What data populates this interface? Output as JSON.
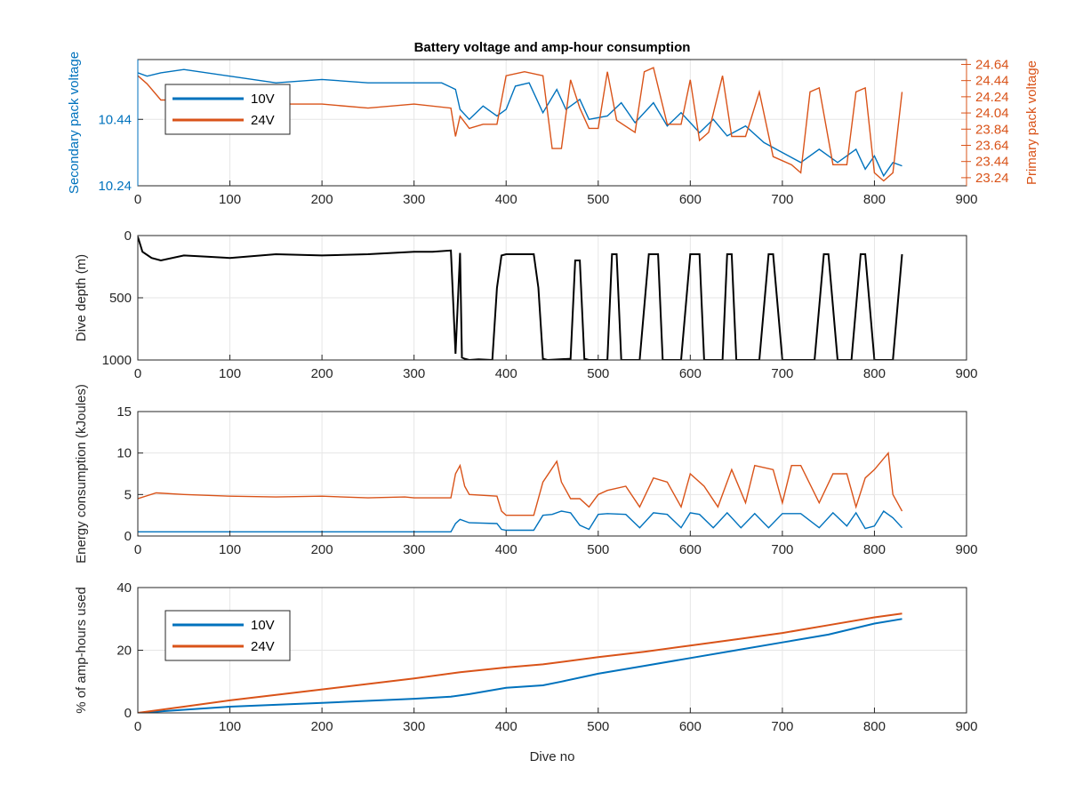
{
  "figure": {
    "title": "Battery voltage and amp-hour consumption",
    "colors": {
      "blue": "#0072bd",
      "orange": "#d95319",
      "black": "#000000",
      "grid": "#e6e6e6",
      "axis": "#262626"
    }
  },
  "chart_data": [
    {
      "id": "voltage",
      "type": "line",
      "title": "Battery voltage and amp-hour consumption",
      "xlabel": "",
      "ylabel": "Secondary pack voltage",
      "ylabel_right": "Primary pack voltage",
      "xlim": [
        0,
        900
      ],
      "ylim": [
        10.24,
        10.62
      ],
      "ylim_right": [
        23.14,
        24.7
      ],
      "xticks": [
        0,
        100,
        200,
        300,
        400,
        500,
        600,
        700,
        800,
        900
      ],
      "yticks": [
        10.24,
        10.44
      ],
      "yticks_right": [
        23.24,
        23.44,
        23.64,
        23.84,
        24.04,
        24.24,
        24.44,
        24.64
      ],
      "grid": true,
      "legend": {
        "placement": "top-left",
        "entries": [
          "10V",
          "24V"
        ]
      },
      "series": [
        {
          "name": "10V",
          "axis": "left",
          "color": "#0072bd",
          "x": [
            0,
            10,
            25,
            50,
            100,
            150,
            200,
            250,
            300,
            330,
            345,
            350,
            360,
            375,
            390,
            400,
            410,
            425,
            440,
            455,
            465,
            480,
            490,
            510,
            525,
            540,
            560,
            575,
            590,
            610,
            625,
            640,
            660,
            680,
            700,
            720,
            740,
            760,
            780,
            790,
            800,
            810,
            820,
            830
          ],
          "y": [
            10.58,
            10.57,
            10.58,
            10.59,
            10.57,
            10.55,
            10.56,
            10.55,
            10.55,
            10.55,
            10.53,
            10.47,
            10.44,
            10.48,
            10.45,
            10.47,
            10.54,
            10.55,
            10.46,
            10.53,
            10.47,
            10.5,
            10.44,
            10.45,
            10.49,
            10.43,
            10.49,
            10.42,
            10.46,
            10.4,
            10.44,
            10.39,
            10.42,
            10.37,
            10.34,
            10.31,
            10.35,
            10.31,
            10.35,
            10.29,
            10.33,
            10.27,
            10.31,
            10.3
          ]
        },
        {
          "name": "24V",
          "axis": "right",
          "color": "#d95319",
          "x": [
            0,
            10,
            25,
            50,
            100,
            150,
            200,
            250,
            300,
            340,
            345,
            350,
            360,
            375,
            390,
            400,
            420,
            440,
            450,
            460,
            470,
            480,
            490,
            500,
            510,
            520,
            540,
            550,
            560,
            575,
            590,
            600,
            610,
            620,
            635,
            645,
            660,
            675,
            690,
            710,
            720,
            730,
            740,
            755,
            770,
            780,
            790,
            800,
            810,
            820,
            830
          ],
          "y": [
            24.5,
            24.4,
            24.2,
            24.2,
            24.1,
            24.15,
            24.15,
            24.1,
            24.15,
            24.1,
            23.75,
            24.0,
            23.85,
            23.9,
            23.9,
            24.5,
            24.55,
            24.5,
            23.6,
            23.6,
            24.45,
            24.1,
            23.85,
            23.85,
            24.55,
            23.95,
            23.8,
            24.55,
            24.6,
            23.9,
            23.9,
            24.45,
            23.7,
            23.8,
            24.5,
            23.75,
            23.75,
            24.3,
            23.5,
            23.4,
            23.3,
            24.3,
            24.35,
            23.4,
            23.4,
            24.3,
            24.35,
            23.3,
            23.2,
            23.3,
            24.3
          ]
        }
      ]
    },
    {
      "id": "depth",
      "type": "line",
      "xlabel": "",
      "ylabel": "Dive depth (m)",
      "xlim": [
        0,
        900
      ],
      "ylim": [
        0,
        1000
      ],
      "y_reversed": true,
      "xticks": [
        0,
        100,
        200,
        300,
        400,
        500,
        600,
        700,
        800,
        900
      ],
      "yticks": [
        0,
        500,
        1000
      ],
      "grid": true,
      "series": [
        {
          "name": "",
          "color": "#000000",
          "x": [
            0,
            5,
            15,
            25,
            50,
            75,
            100,
            150,
            200,
            250,
            300,
            320,
            340,
            345,
            350,
            352,
            355,
            360,
            370,
            385,
            390,
            395,
            400,
            430,
            435,
            440,
            445,
            470,
            475,
            480,
            485,
            490,
            510,
            515,
            520,
            525,
            545,
            555,
            560,
            565,
            570,
            590,
            600,
            605,
            610,
            615,
            635,
            640,
            645,
            650,
            675,
            685,
            690,
            700,
            735,
            745,
            750,
            760,
            775,
            785,
            790,
            800,
            815,
            820,
            830
          ],
          "y": [
            10,
            130,
            180,
            200,
            160,
            170,
            180,
            150,
            160,
            150,
            130,
            130,
            120,
            950,
            140,
            980,
            990,
            1000,
            995,
            1000,
            420,
            160,
            150,
            150,
            420,
            990,
            1000,
            990,
            200,
            200,
            990,
            1000,
            1000,
            150,
            150,
            1000,
            1000,
            150,
            150,
            150,
            1000,
            1000,
            150,
            150,
            150,
            1000,
            1000,
            150,
            150,
            1000,
            1000,
            150,
            150,
            1000,
            1000,
            150,
            150,
            1000,
            1000,
            150,
            150,
            1000,
            1000,
            1000,
            150
          ]
        }
      ]
    },
    {
      "id": "energy",
      "type": "line",
      "xlabel": "",
      "ylabel": "Energy consumption (kJoules)",
      "xlim": [
        0,
        900
      ],
      "ylim": [
        0,
        15
      ],
      "xticks": [
        0,
        100,
        200,
        300,
        400,
        500,
        600,
        700,
        800,
        900
      ],
      "yticks": [
        0,
        5,
        10,
        15
      ],
      "grid": true,
      "series": [
        {
          "name": "10V",
          "color": "#0072bd",
          "x": [
            0,
            50,
            100,
            150,
            200,
            250,
            300,
            340,
            345,
            350,
            360,
            390,
            395,
            400,
            430,
            440,
            450,
            460,
            470,
            480,
            490,
            500,
            510,
            530,
            545,
            560,
            575,
            590,
            600,
            610,
            625,
            640,
            655,
            670,
            685,
            700,
            720,
            740,
            755,
            770,
            780,
            790,
            800,
            810,
            820,
            830
          ],
          "y": [
            0.5,
            0.5,
            0.5,
            0.5,
            0.5,
            0.5,
            0.5,
            0.5,
            1.5,
            2.0,
            1.6,
            1.5,
            0.8,
            0.7,
            0.7,
            2.5,
            2.6,
            3.0,
            2.8,
            1.3,
            0.8,
            2.6,
            2.7,
            2.6,
            1.0,
            2.8,
            2.6,
            1.0,
            2.8,
            2.6,
            1.0,
            2.8,
            1.0,
            2.7,
            1.0,
            2.7,
            2.7,
            1.0,
            2.8,
            1.2,
            2.8,
            0.9,
            1.2,
            3.0,
            2.2,
            1.0
          ]
        },
        {
          "name": "24V",
          "color": "#d95319",
          "x": [
            0,
            20,
            50,
            100,
            150,
            200,
            250,
            290,
            300,
            340,
            345,
            350,
            355,
            360,
            390,
            395,
            400,
            430,
            440,
            455,
            460,
            470,
            480,
            490,
            500,
            510,
            530,
            545,
            560,
            575,
            590,
            600,
            615,
            630,
            645,
            660,
            670,
            690,
            700,
            710,
            720,
            740,
            755,
            770,
            780,
            790,
            800,
            815,
            820,
            830
          ],
          "y": [
            4.5,
            5.2,
            5.0,
            4.8,
            4.7,
            4.8,
            4.6,
            4.7,
            4.6,
            4.6,
            7.5,
            8.5,
            6.0,
            5.0,
            4.8,
            3.0,
            2.5,
            2.5,
            6.5,
            9.0,
            6.5,
            4.5,
            4.5,
            3.5,
            5.0,
            5.5,
            6.0,
            3.5,
            7.0,
            6.5,
            3.5,
            7.5,
            6.0,
            3.5,
            8.0,
            4.0,
            8.5,
            8.0,
            4.0,
            8.5,
            8.5,
            4.0,
            7.5,
            7.5,
            3.5,
            7.0,
            8.0,
            10.0,
            5.0,
            3.0
          ]
        }
      ]
    },
    {
      "id": "amphours",
      "type": "line",
      "xlabel": "Dive no",
      "ylabel": "% of amp-hours used",
      "xlim": [
        0,
        900
      ],
      "ylim": [
        0,
        40
      ],
      "xticks": [
        0,
        100,
        200,
        300,
        400,
        500,
        600,
        700,
        800,
        900
      ],
      "yticks": [
        0,
        20,
        40
      ],
      "grid": true,
      "legend": {
        "placement": "top-left",
        "entries": [
          "10V",
          "24V"
        ]
      },
      "series": [
        {
          "name": "10V",
          "color": "#0072bd",
          "x": [
            0,
            50,
            100,
            200,
            300,
            340,
            360,
            400,
            440,
            460,
            500,
            550,
            600,
            650,
            700,
            750,
            800,
            830
          ],
          "y": [
            0,
            1.0,
            2.0,
            3.2,
            4.5,
            5.2,
            6.0,
            8.0,
            8.8,
            10.0,
            12.5,
            15.0,
            17.5,
            20.0,
            22.5,
            25.0,
            28.5,
            30.0
          ]
        },
        {
          "name": "24V",
          "color": "#d95319",
          "x": [
            0,
            50,
            100,
            200,
            300,
            350,
            400,
            440,
            500,
            550,
            600,
            650,
            700,
            750,
            800,
            830
          ],
          "y": [
            0,
            2.0,
            4.0,
            7.5,
            11.0,
            13.0,
            14.5,
            15.5,
            17.8,
            19.5,
            21.5,
            23.5,
            25.5,
            28.0,
            30.5,
            31.7
          ]
        }
      ]
    }
  ]
}
